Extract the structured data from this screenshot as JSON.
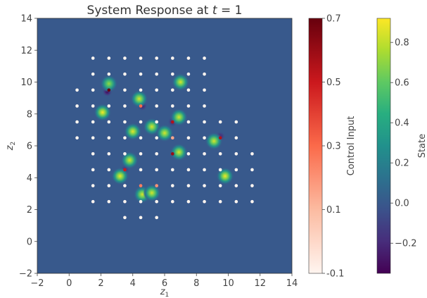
{
  "chart_data": {
    "type": "heatmap",
    "title": "System Response at t = 1",
    "xlabel": "z1",
    "ylabel": "z2",
    "xlim": [
      -2,
      14
    ],
    "ylim": [
      -2,
      14
    ],
    "xticks": [
      -2,
      0,
      2,
      4,
      6,
      8,
      10,
      12,
      14
    ],
    "yticks": [
      -2,
      0,
      2,
      4,
      6,
      8,
      10,
      12,
      14
    ],
    "background_value": 0.0,
    "state_bumps": [
      {
        "x": 2.5,
        "y": 9.9,
        "v": 0.72
      },
      {
        "x": 7.0,
        "y": 10.0,
        "v": 0.85
      },
      {
        "x": 4.4,
        "y": 8.95,
        "v": 0.85
      },
      {
        "x": 2.1,
        "y": 8.1,
        "v": 0.92
      },
      {
        "x": 6.9,
        "y": 7.8,
        "v": 0.85
      },
      {
        "x": 5.2,
        "y": 7.2,
        "v": 0.85
      },
      {
        "x": 4.0,
        "y": 6.9,
        "v": 0.88
      },
      {
        "x": 6.0,
        "y": 6.8,
        "v": 0.85
      },
      {
        "x": 9.1,
        "y": 6.3,
        "v": 0.85
      },
      {
        "x": 6.9,
        "y": 5.6,
        "v": 0.85
      },
      {
        "x": 3.8,
        "y": 5.1,
        "v": 0.85
      },
      {
        "x": 3.2,
        "y": 4.1,
        "v": 0.9
      },
      {
        "x": 9.8,
        "y": 4.1,
        "v": 0.9
      },
      {
        "x": 4.6,
        "y": 2.95,
        "v": 0.85
      },
      {
        "x": 5.2,
        "y": 3.05,
        "v": 0.85
      }
    ],
    "state_dips": [
      {
        "x": 2.4,
        "y": 9.4,
        "v": -0.35
      },
      {
        "x": 4.6,
        "y": 8.5,
        "v": -0.25
      },
      {
        "x": 6.8,
        "y": 5.4,
        "v": -0.28
      },
      {
        "x": 6.5,
        "y": 7.5,
        "v": -0.2
      },
      {
        "x": 9.5,
        "y": 6.6,
        "v": -0.2
      },
      {
        "x": 3.5,
        "y": 4.5,
        "v": -0.15
      }
    ],
    "control_points": {
      "rows": [
        {
          "y": 11.5,
          "x": [
            1.5,
            2.5,
            3.5,
            4.5,
            5.5,
            6.5,
            7.5,
            8.5
          ]
        },
        {
          "y": 10.5,
          "x": [
            1.5,
            2.5,
            3.5,
            4.5,
            5.5,
            6.5,
            7.5,
            8.5
          ]
        },
        {
          "y": 9.5,
          "x": [
            0.5,
            1.5,
            2.5,
            3.5,
            4.5,
            5.5,
            6.5,
            7.5,
            8.5
          ]
        },
        {
          "y": 8.5,
          "x": [
            0.5,
            1.5,
            2.5,
            3.5,
            4.5,
            5.5,
            6.5,
            7.5,
            8.5
          ]
        },
        {
          "y": 7.5,
          "x": [
            0.5,
            1.5,
            2.5,
            3.5,
            4.5,
            5.5,
            6.5,
            7.5,
            8.5,
            9.5,
            10.5
          ]
        },
        {
          "y": 6.5,
          "x": [
            0.5,
            1.5,
            2.5,
            3.5,
            4.5,
            5.5,
            6.5,
            7.5,
            8.5,
            9.5,
            10.5
          ]
        },
        {
          "y": 5.5,
          "x": [
            1.5,
            2.5,
            3.5,
            4.5,
            5.5,
            6.5,
            7.5,
            8.5,
            9.5,
            10.5,
            11.5
          ]
        },
        {
          "y": 4.5,
          "x": [
            1.5,
            2.5,
            3.5,
            4.5,
            5.5,
            6.5,
            7.5,
            8.5,
            9.5,
            10.5,
            11.5
          ]
        },
        {
          "y": 3.5,
          "x": [
            1.5,
            2.5,
            3.5,
            4.5,
            5.5,
            6.5,
            7.5,
            8.5,
            9.5,
            10.5,
            11.5
          ]
        },
        {
          "y": 2.5,
          "x": [
            1.5,
            2.5,
            3.5,
            4.5,
            5.5,
            6.5,
            7.5,
            8.5,
            9.5,
            10.5,
            11.5
          ]
        },
        {
          "y": 1.5,
          "x": [
            3.5,
            4.5,
            5.5
          ]
        }
      ],
      "default_value": -0.1,
      "active": [
        {
          "x": 2.5,
          "y": 9.5,
          "v": 0.7
        },
        {
          "x": 6.5,
          "y": 5.5,
          "v": 0.6
        },
        {
          "x": 6.5,
          "y": 7.5,
          "v": 0.55
        },
        {
          "x": 9.5,
          "y": 6.5,
          "v": 0.55
        },
        {
          "x": 3.5,
          "y": 4.5,
          "v": 0.5
        },
        {
          "x": 4.5,
          "y": 8.5,
          "v": 0.3
        },
        {
          "x": 4.5,
          "y": 3.5,
          "v": 0.25
        },
        {
          "x": 5.5,
          "y": 3.5,
          "v": 0.2
        },
        {
          "x": 6.5,
          "y": 6.5,
          "v": 0.15
        }
      ]
    },
    "colorbars": [
      {
        "label": "Control Input",
        "colormap": "Reds",
        "range": [
          -0.1,
          0.7
        ],
        "ticks": [
          0.7,
          0.5,
          0.3,
          0.1,
          -0.1
        ],
        "tick_labels": [
          "0.7",
          "0.5",
          "0.3",
          "0.1",
          "-0.1"
        ]
      },
      {
        "label": "State",
        "colormap": "viridis",
        "range": [
          -0.35,
          0.92
        ],
        "ticks": [
          0.8,
          0.6,
          0.4,
          0.2,
          0.0,
          -0.2
        ],
        "tick_labels": [
          "0.8",
          "0.6",
          "0.4",
          "0.2",
          "0.0",
          "−0.2"
        ]
      }
    ]
  }
}
